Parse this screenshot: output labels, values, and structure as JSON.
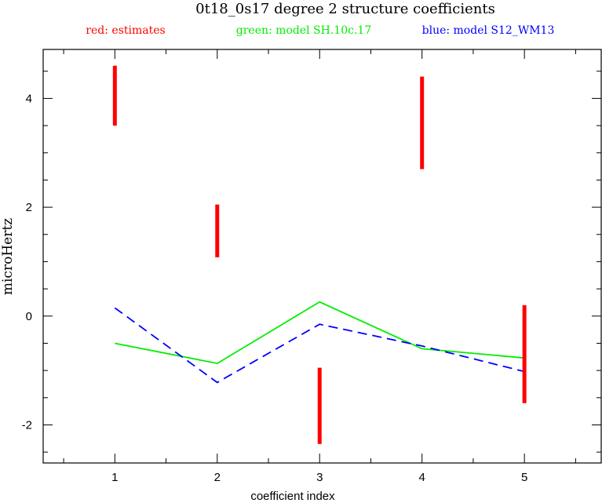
{
  "chart_data": {
    "type": "line",
    "title": "0t18_0s17 degree 2 structure coefficients",
    "xlabel": "coefficient index",
    "ylabel": "microHertz",
    "xlim": [
      0.3,
      5.75
    ],
    "ylim": [
      -2.7,
      4.9
    ],
    "x_ticks": [
      1,
      2,
      3,
      4,
      5
    ],
    "y_ticks": [
      -2,
      0,
      2,
      4
    ],
    "grid": false,
    "legend": [
      {
        "label": "red: estimates",
        "color": "#ff0000"
      },
      {
        "label": "green: model SH.10c.17",
        "color": "#00ee00"
      },
      {
        "label": "blue: model S12_WM13",
        "color": "#0000ff"
      }
    ],
    "estimates": [
      {
        "x": 1,
        "low": 3.5,
        "high": 4.6
      },
      {
        "x": 2,
        "low": 1.08,
        "high": 2.05
      },
      {
        "x": 3,
        "low": -2.35,
        "high": -0.95
      },
      {
        "x": 4,
        "low": 2.7,
        "high": 4.4
      },
      {
        "x": 5,
        "low": -1.6,
        "high": 0.2
      }
    ],
    "series": [
      {
        "name": "model SH.10c.17",
        "color": "#00ee00",
        "style": "solid",
        "x": [
          1,
          2,
          3,
          4,
          5
        ],
        "values": [
          -0.5,
          -0.87,
          0.26,
          -0.6,
          -0.77
        ]
      },
      {
        "name": "model S12_WM13",
        "color": "#0000ff",
        "style": "dashed",
        "x": [
          1,
          2,
          3,
          4,
          5
        ],
        "values": [
          0.15,
          -1.22,
          -0.15,
          -0.55,
          -1.02
        ]
      }
    ]
  }
}
